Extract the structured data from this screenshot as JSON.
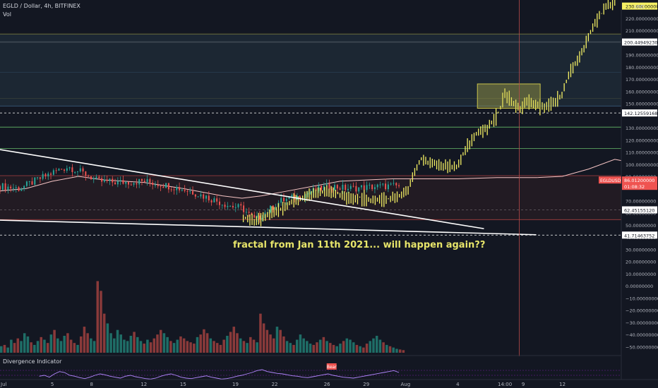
{
  "header": {
    "symbol": "EGLD / Dollar, 4h, BITFINEX",
    "vol_label": "Vol"
  },
  "indicator_label": "Divergence Indicator",
  "indicator_badge": "Bear",
  "annotation": "fractal from Jan 11th 2021... will happen again??",
  "currency": "USD",
  "colors": {
    "background": "#131722",
    "up_candle": "#26a69a",
    "down_candle": "#ef5350",
    "fractal": "#f5f064",
    "ma_line": "#f7c5c5",
    "trendline": "#ffffff",
    "highlight_box": "#c9c44a",
    "indicator_line": "#b388ff",
    "current_price_tag": "#ef5350"
  },
  "chart_data": {
    "type": "candlestick",
    "symbol": "EGLD/USD",
    "interval": "4h",
    "exchange": "BITFINEX",
    "y_range": [
      -55,
      235
    ],
    "x_ticks": [
      "Jul",
      "5",
      "8",
      "12",
      "15",
      "19",
      "22",
      "26",
      "29",
      "Aug",
      "4",
      "14:00",
      "9",
      "12"
    ],
    "x_tick_days": [
      1,
      5,
      8,
      12,
      15,
      19,
      22,
      26,
      29,
      32,
      36,
      39.6,
      41,
      44
    ],
    "x_range_days": [
      1,
      48.5
    ],
    "y_ticks": [
      "230.00000000",
      "220.00000000",
      "210.00000000",
      "190.00000000",
      "180.00000000",
      "170.00000000",
      "160.00000000",
      "150.00000000",
      "130.00000000",
      "120.00000000",
      "110.00000000",
      "100.00000000",
      "90.00000000",
      "70.00000000",
      "60.00000000",
      "50.00000000",
      "40.00000000",
      "30.00000000",
      "20.00000000",
      "10.00000000",
      "0.00000000",
      "−10.00000000",
      "−20.00000000",
      "−30.00000000",
      "−40.00000000",
      "−50.00000000"
    ],
    "y_tick_values": [
      230,
      220,
      210,
      190,
      180,
      170,
      160,
      150,
      130,
      120,
      110,
      100,
      90,
      70,
      60,
      50,
      40,
      30,
      20,
      10,
      0,
      -10,
      -20,
      -30,
      -40,
      -50
    ],
    "price_labels": [
      {
        "value": 200.4494923,
        "text": "200.44949230"
      },
      {
        "value": 142.12559168,
        "text": "142.12559168"
      },
      {
        "value": 62.4515512,
        "text": "62.45155120"
      },
      {
        "value": 41.71463752,
        "text": "41.71463752"
      }
    ],
    "current_price": {
      "symbol": "EGLDUSD",
      "value": "86.01200000",
      "countdown": "01:08:32"
    },
    "horizontal_levels": [
      {
        "value": 207,
        "color": "#c9c44a"
      },
      {
        "value": 200.45,
        "color": "#ffffff"
      },
      {
        "value": 175.5,
        "color": "#5b9bd5"
      },
      {
        "value": 154,
        "color": "#c9c44a"
      },
      {
        "value": 148,
        "color": "#5b9bd5"
      },
      {
        "value": 142.13,
        "color": "#ffffff",
        "dashed": true
      },
      {
        "value": 130.5,
        "color": "#66bb6a"
      },
      {
        "value": 113,
        "color": "#66bb6a"
      },
      {
        "value": 90.5,
        "color": "#ef5350"
      },
      {
        "value": 62.45,
        "color": "#ffffff",
        "dashed": true
      },
      {
        "value": 54.5,
        "color": "#ef5350"
      },
      {
        "value": 41.71,
        "color": "#ffffff",
        "dashed": true
      }
    ],
    "price_path": [
      [
        1,
        82
      ],
      [
        2.5,
        80
      ],
      [
        4,
        88
      ],
      [
        5.2,
        94
      ],
      [
        6.2,
        98
      ],
      [
        7.5,
        92
      ],
      [
        8.5,
        86
      ],
      [
        10,
        85
      ],
      [
        12,
        86
      ],
      [
        14,
        82
      ],
      [
        15.5,
        78
      ],
      [
        17,
        72
      ],
      [
        18.5,
        66
      ],
      [
        19.5,
        64
      ],
      [
        20.5,
        54
      ],
      [
        21.5,
        62
      ],
      [
        22.5,
        70
      ],
      [
        24,
        74
      ],
      [
        25.5,
        80
      ],
      [
        26.3,
        82
      ],
      [
        27.5,
        80
      ],
      [
        29,
        81
      ],
      [
        30.5,
        82
      ],
      [
        31.5,
        82
      ]
    ],
    "fractal_path": [
      [
        19.6,
        56
      ],
      [
        20.5,
        52
      ],
      [
        21.5,
        58
      ],
      [
        22.5,
        64
      ],
      [
        23.5,
        70
      ],
      [
        24.5,
        73
      ],
      [
        25.5,
        77
      ],
      [
        26.5,
        78
      ],
      [
        27.5,
        72
      ],
      [
        28.5,
        73
      ],
      [
        29.5,
        71
      ],
      [
        30.5,
        72
      ],
      [
        31.5,
        74
      ],
      [
        32.2,
        80
      ],
      [
        32.6,
        92
      ],
      [
        33.2,
        104
      ],
      [
        34,
        100
      ],
      [
        35,
        99
      ],
      [
        36,
        98
      ],
      [
        36.6,
        112
      ],
      [
        37.4,
        126
      ],
      [
        38.2,
        128
      ],
      [
        39,
        140
      ],
      [
        39.6,
        158
      ],
      [
        40.2,
        150
      ],
      [
        40.8,
        145
      ],
      [
        41.3,
        152
      ],
      [
        42,
        148
      ],
      [
        42.7,
        146
      ],
      [
        43.3,
        150
      ],
      [
        44,
        158
      ],
      [
        44.6,
        176
      ],
      [
        45.3,
        188
      ],
      [
        46,
        205
      ],
      [
        46.7,
        220
      ],
      [
        47.4,
        230
      ],
      [
        48,
        233
      ]
    ],
    "moving_average": [
      [
        1,
        78
      ],
      [
        3,
        80
      ],
      [
        5,
        86
      ],
      [
        7,
        90
      ],
      [
        9,
        87
      ],
      [
        12,
        85
      ],
      [
        15,
        80
      ],
      [
        18,
        74
      ],
      [
        19.5,
        72
      ],
      [
        21,
        74
      ],
      [
        23,
        78
      ],
      [
        25,
        82
      ],
      [
        27,
        86
      ],
      [
        29,
        87
      ],
      [
        31,
        88
      ],
      [
        33,
        88
      ],
      [
        36,
        88
      ],
      [
        39,
        89
      ],
      [
        42,
        89
      ],
      [
        44,
        90
      ],
      [
        46,
        96
      ],
      [
        48,
        104
      ],
      [
        48.5,
        103
      ]
    ],
    "trendlines": [
      {
        "from": [
          1,
          112
        ],
        "to": [
          38,
          47
        ]
      },
      {
        "from": [
          1,
          54
        ],
        "to": [
          42,
          42
        ]
      }
    ],
    "highlight_box": {
      "x": [
        37.5,
        42.3
      ],
      "y": [
        146,
        166
      ]
    },
    "vertical_marker_day": 40.7,
    "volume": {
      "y_range": [
        0,
        130
      ],
      "values": [
        10,
        12,
        8,
        20,
        15,
        22,
        18,
        30,
        25,
        16,
        12,
        18,
        24,
        20,
        15,
        28,
        35,
        22,
        18,
        26,
        30,
        20,
        15,
        12,
        25,
        40,
        30,
        22,
        18,
        110,
        95,
        60,
        45,
        30,
        22,
        35,
        28,
        20,
        18,
        26,
        32,
        24,
        18,
        14,
        20,
        16,
        22,
        28,
        35,
        30,
        24,
        18,
        15,
        20,
        25,
        22,
        18,
        16,
        14,
        24,
        28,
        36,
        30,
        22,
        18,
        15,
        12,
        20,
        26,
        32,
        40,
        30,
        22,
        18,
        15,
        24,
        20,
        16,
        60,
        45,
        35,
        28,
        22,
        40,
        35,
        25,
        18,
        15,
        12,
        20,
        28,
        22,
        18,
        14,
        12,
        16,
        20,
        24,
        18,
        15,
        12,
        10,
        14,
        18,
        22,
        20,
        16,
        12,
        10,
        8,
        14,
        18,
        22,
        26,
        20,
        16,
        12,
        10,
        8,
        6,
        5,
        4
      ]
    },
    "indicator_values": [
      50,
      52,
      48,
      55,
      60,
      58,
      52,
      50,
      47,
      45,
      48,
      52,
      55,
      53,
      50,
      48,
      46,
      50,
      52,
      49,
      47,
      45,
      44,
      46,
      50,
      53,
      55,
      52,
      48,
      46,
      45,
      47,
      49,
      51,
      48,
      46,
      44,
      45,
      47,
      50,
      52,
      55,
      58,
      62,
      64,
      60,
      58,
      56,
      55,
      53,
      51,
      50,
      48,
      47,
      49,
      51,
      53,
      55,
      52,
      50,
      48,
      47,
      46,
      48,
      50,
      52,
      54,
      56,
      58,
      60,
      62,
      58
    ],
    "indicator_x_range_days": [
      4,
      31.5
    ]
  }
}
